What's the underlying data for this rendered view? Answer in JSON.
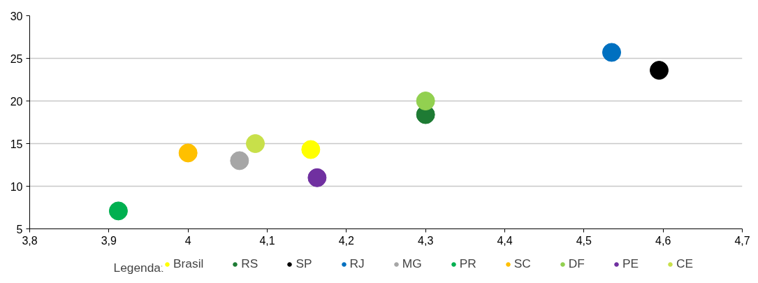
{
  "chart_data": {
    "type": "scatter",
    "legend_title": "Legenda:",
    "legend": "bottom",
    "grid": "y",
    "marker": "circle",
    "xlim": [
      3.8,
      4.7
    ],
    "xticks": [
      {
        "value": 3.8,
        "label": "3,8"
      },
      {
        "value": 3.9,
        "label": "3,9"
      },
      {
        "value": 4,
        "label": "4"
      },
      {
        "value": 4.1,
        "label": "4,1"
      },
      {
        "value": 4.2,
        "label": "4,2"
      },
      {
        "value": 4.3,
        "label": "4,3"
      },
      {
        "value": 4.4,
        "label": "4,4"
      },
      {
        "value": 4.5,
        "label": "4,5"
      },
      {
        "value": 4.6,
        "label": "4,6"
      },
      {
        "value": 4.7,
        "label": "4,7"
      }
    ],
    "ylim": [
      5,
      30
    ],
    "yticks": [
      5,
      10,
      15,
      20,
      25,
      30
    ],
    "series": [
      {
        "name": "Brasil",
        "color": "#ffff00",
        "x": [
          4.155
        ],
        "values": [
          14.3
        ]
      },
      {
        "name": "RS",
        "color": "#1e7b34",
        "x": [
          4.3
        ],
        "values": [
          18.4
        ]
      },
      {
        "name": "SP",
        "color": "#000000",
        "x": [
          4.595
        ],
        "values": [
          23.6
        ]
      },
      {
        "name": "RJ",
        "color": "#0070c0",
        "x": [
          4.535
        ],
        "values": [
          25.7
        ]
      },
      {
        "name": "MG",
        "color": "#a6a6a6",
        "x": [
          4.065
        ],
        "values": [
          13.0
        ]
      },
      {
        "name": "PR",
        "color": "#00b050",
        "x": [
          3.912
        ],
        "values": [
          7.1
        ]
      },
      {
        "name": "SC",
        "color": "#ffc000",
        "x": [
          4.0
        ],
        "values": [
          13.9
        ]
      },
      {
        "name": "DF",
        "color": "#92d050",
        "x": [
          4.3
        ],
        "values": [
          20.0
        ]
      },
      {
        "name": "PE",
        "color": "#7030a0",
        "x": [
          4.163
        ],
        "values": [
          11.0
        ]
      },
      {
        "name": "CE",
        "color": "#c8e04a",
        "x": [
          4.085
        ],
        "values": [
          15.0
        ]
      }
    ]
  }
}
